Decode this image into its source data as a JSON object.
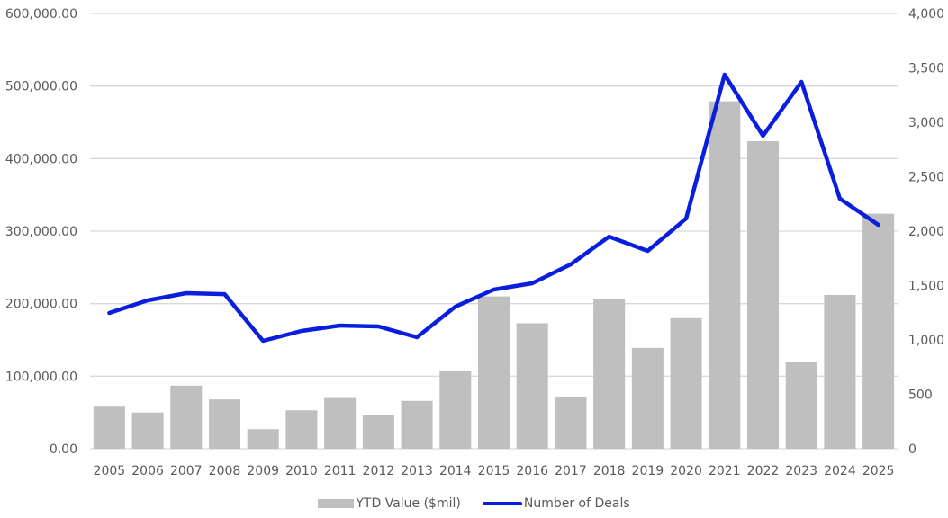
{
  "chart_data": {
    "type": "bar+line",
    "title": "",
    "categories": [
      "2005",
      "2006",
      "2007",
      "2008",
      "2009",
      "2010",
      "2011",
      "2012",
      "2013",
      "2014",
      "2015",
      "2016",
      "2017",
      "2018",
      "2019",
      "2020",
      "2021",
      "2022",
      "2023",
      "2024",
      "2025"
    ],
    "series": [
      {
        "name": "YTD Value ($mil)",
        "type": "bar",
        "axis": "left",
        "color": "#bfbfbf",
        "values": [
          58000,
          50000,
          87000,
          68000,
          27000,
          53000,
          70000,
          47000,
          66000,
          108000,
          210000,
          173000,
          72000,
          207000,
          139000,
          180000,
          479000,
          424000,
          119000,
          212000,
          324000
        ]
      },
      {
        "name": "Number of Deals",
        "type": "line",
        "axis": "right",
        "color": "#0a1ee0",
        "values": [
          1248,
          1364,
          1430,
          1421,
          992,
          1083,
          1132,
          1124,
          1025,
          1306,
          1463,
          1521,
          1694,
          1950,
          1818,
          2116,
          3438,
          2876,
          3372,
          2298,
          2058
        ]
      }
    ],
    "left_axis": {
      "ylim": [
        0,
        600000
      ],
      "ticks": [
        "0.00",
        "100,000.00",
        "200,000.00",
        "300,000.00",
        "400,000.00",
        "500,000.00",
        "600,000.00"
      ]
    },
    "right_axis": {
      "ylim": [
        0,
        4000
      ],
      "ticks": [
        "0",
        "500",
        "1,000",
        "1,500",
        "2,000",
        "2,500",
        "3,000",
        "3,500",
        "4,000"
      ]
    },
    "xlabel": "",
    "ylabel": "",
    "grid": true,
    "legend_position": "bottom"
  },
  "legend": {
    "bar_label": "YTD Value ($mil)",
    "line_label": "Number of Deals"
  }
}
